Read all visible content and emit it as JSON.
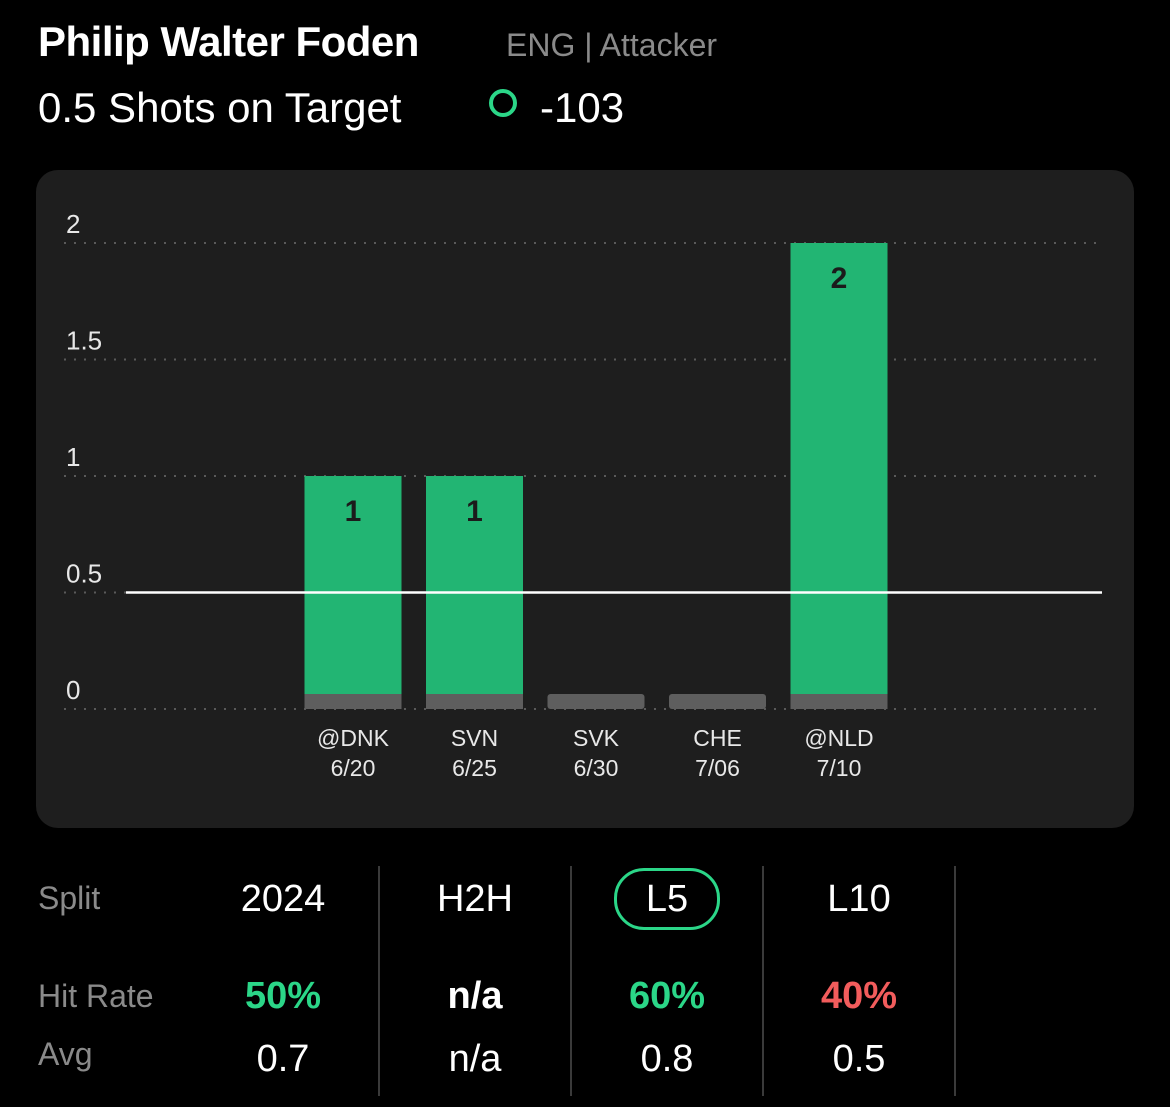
{
  "header": {
    "player_name": "Philip Walter Foden",
    "player_meta": "ENG | Attacker",
    "prop_line": "0.5 Shots on Target",
    "odds": "-103",
    "odds_icon": "over-circle-icon",
    "accent_color": "#2bd688"
  },
  "chart_data": {
    "type": "bar",
    "categories": [
      "@DNK",
      "SVN",
      "SVK",
      "CHE",
      "@NLD"
    ],
    "dates": [
      "6/20",
      "6/25",
      "6/30",
      "7/06",
      "7/10"
    ],
    "values": [
      1,
      1,
      0,
      0,
      2
    ],
    "value_labels": [
      "1",
      "1",
      "",
      "",
      "2"
    ],
    "line": 0.5,
    "ylim": [
      0,
      2
    ],
    "yticks": [
      0,
      0.5,
      1,
      1.5,
      2
    ],
    "ytick_labels": [
      "0",
      "0.5",
      "1",
      "1.5",
      "2"
    ],
    "colors": {
      "hit": "#22b573",
      "miss": "#5e5e5e",
      "line": "#ffffff",
      "grid": "#5a5a5a"
    }
  },
  "splits": {
    "label": "Split",
    "items": [
      "2024",
      "H2H",
      "L5",
      "L10"
    ],
    "selected": "L5"
  },
  "hit_rate": {
    "label": "Hit Rate",
    "values": [
      "50%",
      "n/a",
      "60%",
      "40%"
    ],
    "colors": [
      "#2bd688",
      "#ffffff",
      "#2bd688",
      "#f25c5c"
    ]
  },
  "average": {
    "label": "Avg",
    "values": [
      "0.7",
      "n/a",
      "0.8",
      "0.5"
    ]
  }
}
